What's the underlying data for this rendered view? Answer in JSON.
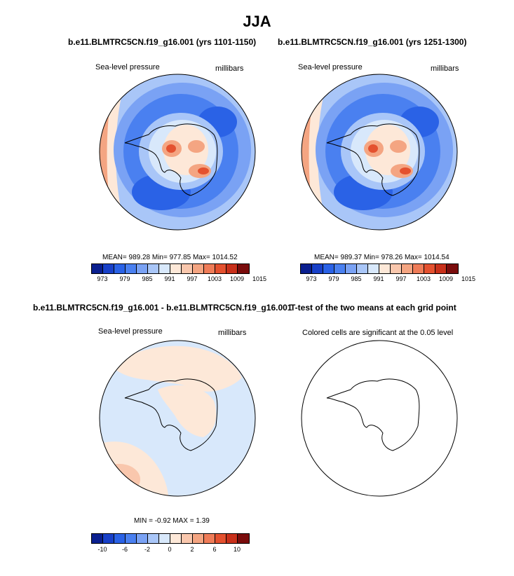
{
  "title": "JJA",
  "top_left": {
    "title": "b.e11.BLMTRC5CN.f19_g16.001 (yrs 1101-1150)",
    "variable": "Sea-level pressure",
    "units": "millibars",
    "stats": "MEAN= 989.28  Min= 977.85  Max= 1014.52"
  },
  "top_right": {
    "title": "b.e11.BLMTRC5CN.f19_g16.001 (yrs 1251-1300)",
    "variable": "Sea-level pressure",
    "units": "millibars",
    "stats": "MEAN= 989.37  Min= 978.26  Max= 1014.54"
  },
  "bottom_left": {
    "title": "b.e11.BLMTRC5CN.f19_g16.001 - b.e11.BLMTRC5CN.f19_g16.001",
    "variable": "Sea-level pressure",
    "units": "millibars",
    "stats": "MIN = -0.92 MAX =  1.39"
  },
  "bottom_right": {
    "title": "T-test of the two means at each grid point",
    "note": "Colored cells are significant at the 0.05 level"
  },
  "legend_top": {
    "colors": [
      "#0a1f8f",
      "#1840c8",
      "#2a62e6",
      "#4a80f0",
      "#7aa2f4",
      "#a9c6f8",
      "#d8e8fb",
      "#fde8d8",
      "#f9c7ad",
      "#f4a582",
      "#ef7c58",
      "#e4512f",
      "#c8301a",
      "#7a0c0c"
    ],
    "ticks": [
      "973",
      "979",
      "985",
      "991",
      "997",
      "1003",
      "1009",
      "1015"
    ]
  },
  "legend_bottom": {
    "colors": [
      "#0a1f8f",
      "#1840c8",
      "#2a62e6",
      "#4a80f0",
      "#7aa2f4",
      "#a9c6f8",
      "#d8e8fb",
      "#fde8d8",
      "#f9c7ad",
      "#f4a582",
      "#ef7c58",
      "#e4512f",
      "#c8301a",
      "#7a0c0c"
    ],
    "ticks": [
      "-10",
      "-6",
      "-2",
      "0",
      "2",
      "6",
      "10"
    ]
  }
}
